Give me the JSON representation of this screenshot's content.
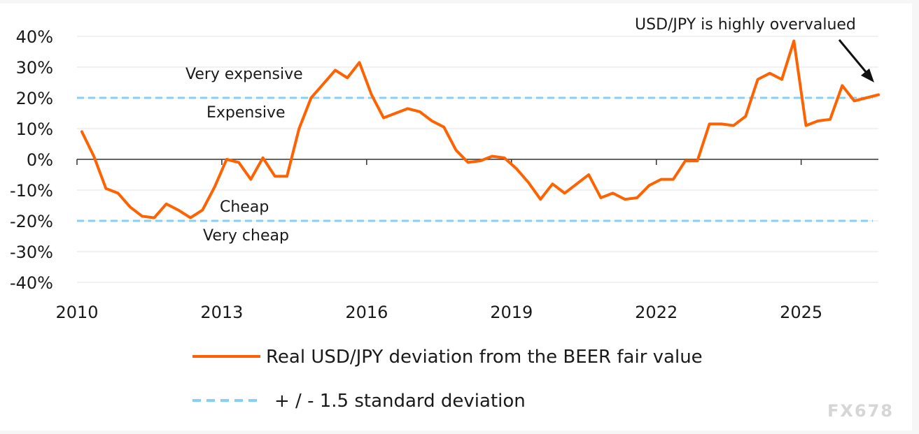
{
  "chart_data": {
    "type": "line",
    "ylim": [
      -40,
      40
    ],
    "xlim": [
      2010,
      2026.6
    ],
    "y_ticks": [
      "40%",
      "30%",
      "20%",
      "10%",
      "0%",
      "-10%",
      "-20%",
      "-30%",
      "-40%"
    ],
    "y_tick_values": [
      40,
      30,
      20,
      10,
      0,
      -10,
      -20,
      -30,
      -40
    ],
    "x_ticks": [
      "2010",
      "2013",
      "2016",
      "2019",
      "2022",
      "2025"
    ],
    "x_tick_values": [
      2010,
      2013,
      2016,
      2019,
      2022,
      2025
    ],
    "grid": "horizontal",
    "series": [
      {
        "name": "Real USD/JPY deviation  from the BEER fair value",
        "color": "#ff6200",
        "style": "solid",
        "x": [
          2010.1,
          2010.35,
          2010.6,
          2010.85,
          2011.1,
          2011.35,
          2011.6,
          2011.85,
          2012.1,
          2012.35,
          2012.6,
          2012.85,
          2013.1,
          2013.35,
          2013.6,
          2013.85,
          2014.1,
          2014.35,
          2014.6,
          2014.85,
          2015.1,
          2015.35,
          2015.6,
          2015.85,
          2016.1,
          2016.35,
          2016.6,
          2016.85,
          2017.1,
          2017.35,
          2017.6,
          2017.85,
          2018.1,
          2018.35,
          2018.6,
          2018.85,
          2019.1,
          2019.35,
          2019.6,
          2019.85,
          2020.1,
          2020.35,
          2020.6,
          2020.85,
          2021.1,
          2021.35,
          2021.6,
          2021.85,
          2022.1,
          2022.35,
          2022.6,
          2022.85,
          2023.1,
          2023.35,
          2023.6,
          2023.85,
          2024.1,
          2024.35,
          2024.6,
          2024.85,
          2025.1,
          2025.35,
          2025.6,
          2025.85,
          2026.1,
          2026.35,
          2026.6
        ],
        "values": [
          9,
          1,
          -9.5,
          -11,
          -15.5,
          -18.5,
          -19,
          -14.5,
          -16.5,
          -19,
          -16.5,
          -9,
          0,
          -1,
          -6.5,
          0.5,
          -5.5,
          -5.5,
          10,
          20,
          24.5,
          29,
          26.5,
          31.5,
          21,
          13.5,
          15,
          16.5,
          15.5,
          12.5,
          10.5,
          3,
          -1,
          -0.5,
          1,
          0.5,
          -3,
          -7.5,
          -13,
          -8,
          -11,
          -8,
          -5,
          -12.5,
          -11,
          -13,
          -12.5,
          -8.5,
          -6.5,
          -6.5,
          -0.5,
          -0.5,
          11.5,
          11.5,
          11,
          14,
          26,
          28,
          26,
          38.5,
          11,
          12.5,
          13,
          24,
          19,
          20,
          21
        ]
      },
      {
        "name": "+ / - 1.5 standard deviation",
        "color": "#87d0f5",
        "style": "dashed",
        "levels": [
          20,
          -20
        ]
      }
    ],
    "annotations": {
      "very_expensive": "Very expensive",
      "expensive": "Expensive",
      "cheap": "Cheap",
      "very_cheap": "Very cheap",
      "overvalued": "USD/JPY is highly overvalued"
    },
    "legend": {
      "placement": "bottom",
      "line_label": "Real USD/JPY deviation  from the BEER fair value",
      "band_label": "+ / - 1.5 standard deviation"
    }
  },
  "watermark": "FX678"
}
